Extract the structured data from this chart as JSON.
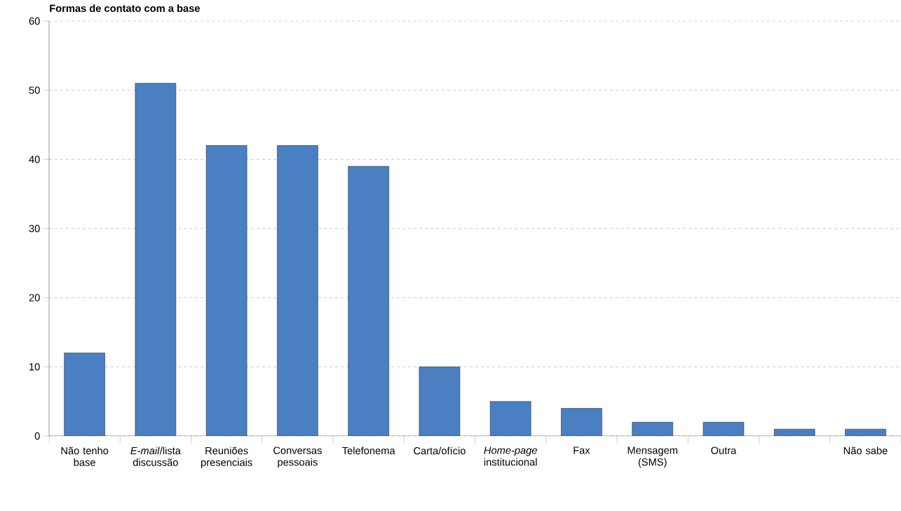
{
  "chart_data": {
    "type": "bar",
    "title": "Formas de contato com a base",
    "categories": [
      "Não tenho base",
      "*E-mail*/lista discussão",
      "Reuniões presenciais",
      "Conversas pessoais",
      "Telefonema",
      "Carta/ofício",
      "*Home-page* institucional",
      "Fax",
      "Mensagem (SMS)",
      "Outra",
      null,
      "Não sabe"
    ],
    "values": [
      12,
      51,
      42,
      42,
      39,
      10,
      5,
      4,
      2,
      2,
      1,
      1
    ],
    "color": "#4a7fc1",
    "ylim": [
      0,
      60
    ],
    "yticks": [
      0,
      10,
      20,
      30,
      40,
      50,
      60
    ],
    "grid": "y"
  }
}
